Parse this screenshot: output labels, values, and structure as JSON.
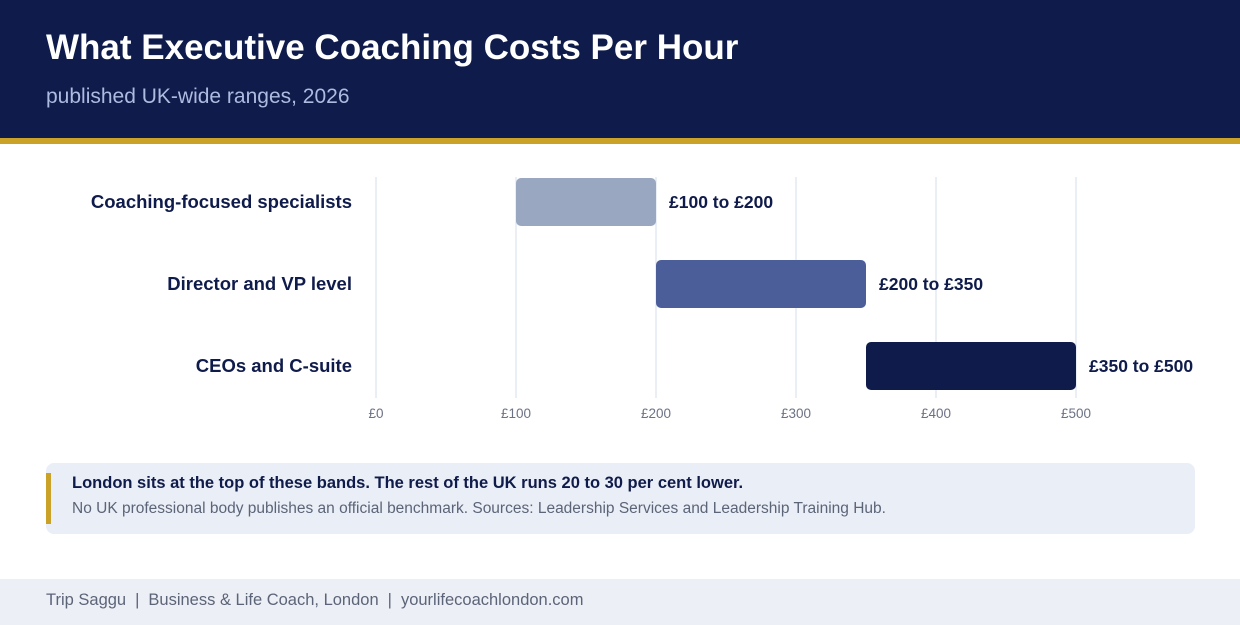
{
  "header": {
    "title": "What Executive Coaching Costs Per Hour",
    "subtitle": "published UK-wide ranges, 2026"
  },
  "chart_data": {
    "type": "bar",
    "orientation": "horizontal-range",
    "title": "What Executive Coaching Costs Per Hour",
    "subtitle": "published UK-wide ranges, 2026",
    "xlim": [
      0,
      500
    ],
    "xticks": [
      0,
      100,
      200,
      300,
      400,
      500
    ],
    "xtick_labels": [
      "£0",
      "£100",
      "£200",
      "£300",
      "£400",
      "£500"
    ],
    "grid": true,
    "categories": [
      "Coaching-focused specialists",
      "Director and VP level",
      "CEOs and C-suite"
    ],
    "ranges": [
      {
        "low": 100,
        "high": 200,
        "label": "£100 to £200",
        "color": "#9aa7c0"
      },
      {
        "low": 200,
        "high": 350,
        "label": "£200 to £350",
        "color": "#4c5e9a"
      },
      {
        "low": 350,
        "high": 500,
        "label": "£350 to £500",
        "color": "#0f1b4a"
      }
    ]
  },
  "note": {
    "headline": "London sits at the top of these bands. The rest of the UK runs 20 to 30 per cent lower.",
    "body": "No UK professional body publishes an official benchmark. Sources: Leadership Services and Leadership Training Hub.",
    "accent_color": "#c9a227"
  },
  "footer": {
    "name": "Trip Saggu",
    "role": "Business & Life Coach, London",
    "website": "yourlifecoachlondon.com",
    "separator": "|"
  },
  "colors": {
    "navy": "#0f1b4a",
    "gold": "#c9a227",
    "grid": "#dde2ee"
  }
}
